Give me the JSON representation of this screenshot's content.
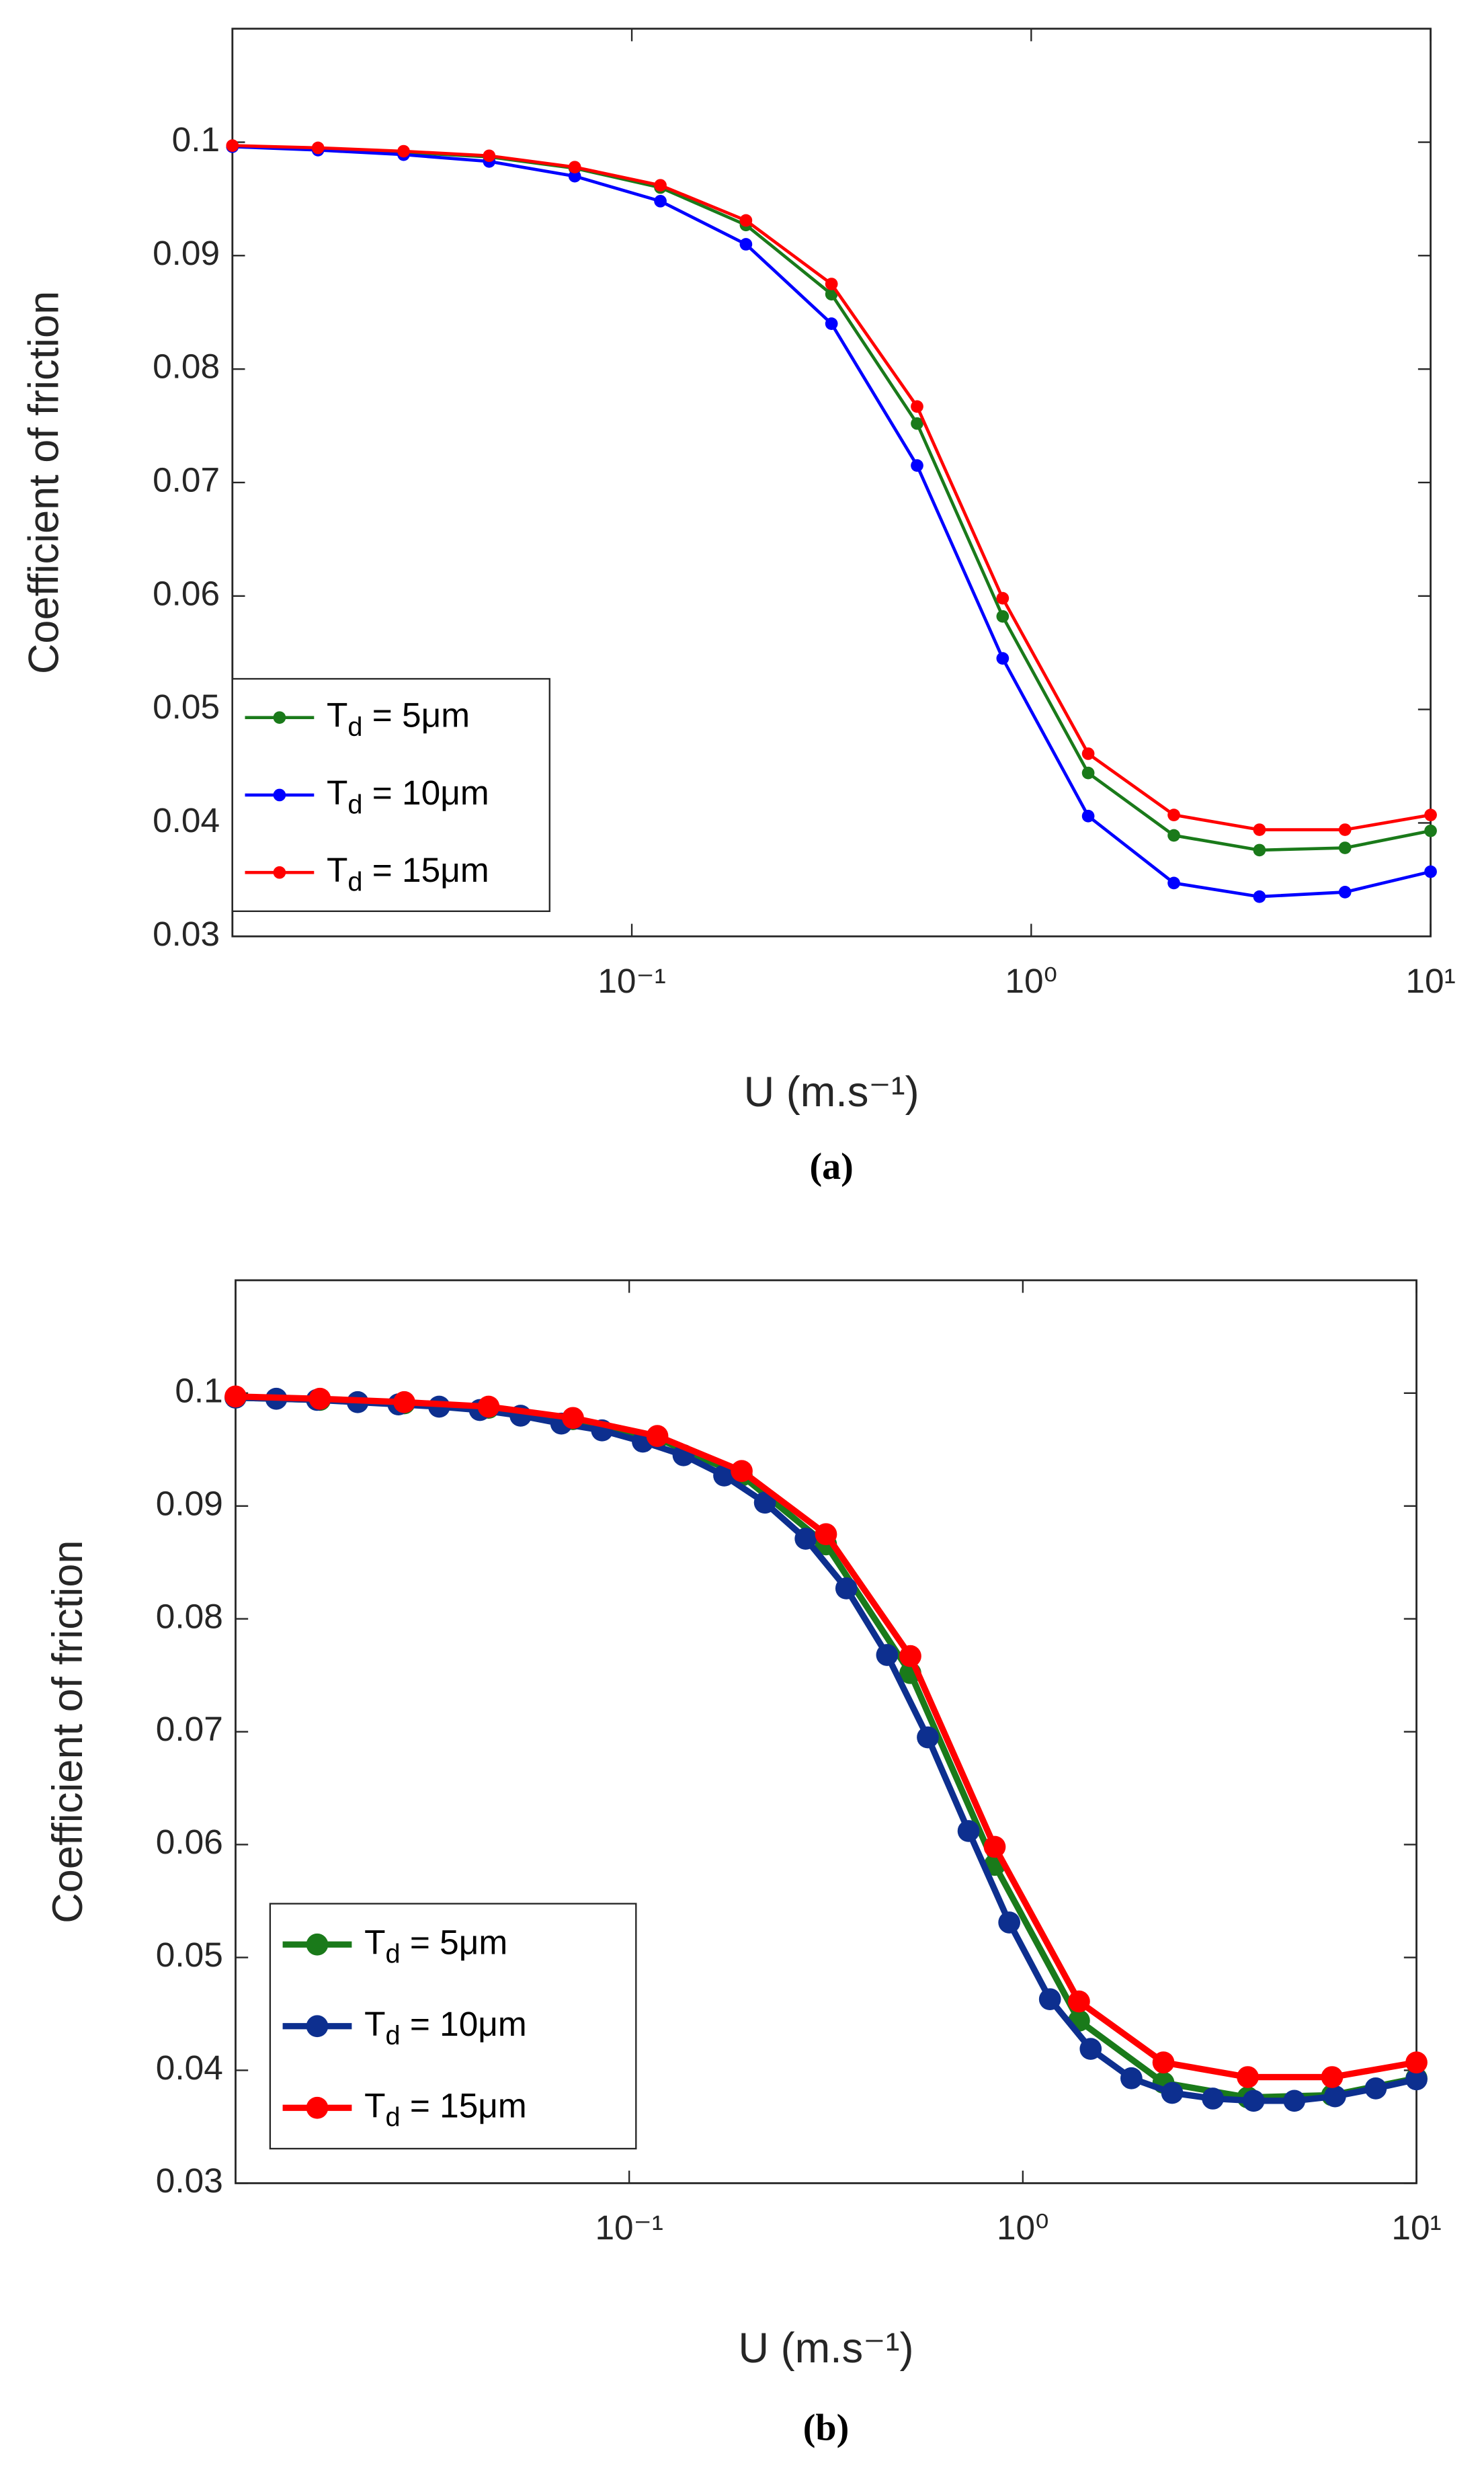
{
  "chart_data": [
    {
      "type": "line",
      "caption": "(a)",
      "xlabel": "U (m.s⁻¹)",
      "ylabel": "Coefficient of friction",
      "xscale": "log",
      "xlim": [
        0.01,
        10
      ],
      "ylim": [
        0.03,
        0.11
      ],
      "xticks": [
        {
          "value": 0.1,
          "label": "10⁻¹"
        },
        {
          "value": 1,
          "label": "10⁰"
        },
        {
          "value": 10,
          "label": "10¹"
        }
      ],
      "yticks": [
        0.03,
        0.04,
        0.05,
        0.06,
        0.07,
        0.08,
        0.09,
        0.1
      ],
      "legend": "lower left",
      "grid": false,
      "series": [
        {
          "name": "Td = 5μm",
          "color": "#1a7a1a",
          "x": [
            0.01,
            0.01638,
            0.02683,
            0.04394,
            0.07197,
            0.1179,
            0.1931,
            0.3162,
            0.5179,
            0.8483,
            1.389,
            2.276,
            3.728,
            6.105,
            10
          ],
          "values": [
            0.0996,
            0.0994,
            0.0991,
            0.0987,
            0.0977,
            0.096,
            0.0927,
            0.0866,
            0.0752,
            0.0582,
            0.0444,
            0.0389,
            0.0376,
            0.0378,
            0.0393
          ]
        },
        {
          "name": "Td = 10μm",
          "color": "#0000ff",
          "x": [
            0.01,
            0.01638,
            0.02683,
            0.04394,
            0.07197,
            0.1179,
            0.1931,
            0.3162,
            0.5179,
            0.8483,
            1.389,
            2.276,
            3.728,
            6.105,
            10
          ],
          "values": [
            0.0996,
            0.0993,
            0.0989,
            0.0983,
            0.097,
            0.0948,
            0.091,
            0.084,
            0.0715,
            0.0545,
            0.0406,
            0.0347,
            0.0335,
            0.0339,
            0.0357
          ]
        },
        {
          "name": "Td = 15μm",
          "color": "#ff0000",
          "x": [
            0.01,
            0.01638,
            0.02683,
            0.04394,
            0.07197,
            0.1179,
            0.1931,
            0.3162,
            0.5179,
            0.8483,
            1.389,
            2.276,
            3.728,
            6.105,
            10
          ],
          "values": [
            0.0997,
            0.0995,
            0.0992,
            0.0988,
            0.0978,
            0.0962,
            0.0931,
            0.0875,
            0.0767,
            0.0598,
            0.0461,
            0.0407,
            0.0394,
            0.0394,
            0.0407
          ]
        }
      ]
    },
    {
      "type": "line",
      "caption": "(b)",
      "xlabel": "U (m.s⁻¹)",
      "ylabel": "Coefficient of friction",
      "xscale": "log",
      "xlim": [
        0.01,
        10
      ],
      "ylim": [
        0.03,
        0.11
      ],
      "xticks": [
        {
          "value": 0.1,
          "label": "10⁻¹"
        },
        {
          "value": 1,
          "label": "10⁰"
        },
        {
          "value": 10,
          "label": "10¹"
        }
      ],
      "yticks": [
        0.03,
        0.04,
        0.05,
        0.06,
        0.07,
        0.08,
        0.09,
        0.1
      ],
      "legend": "lower left",
      "grid": false,
      "series": [
        {
          "name": "Td = 5μm",
          "color": "#1a7a1a",
          "x": [
            0.01,
            0.01638,
            0.02683,
            0.04394,
            0.07197,
            0.1179,
            0.1931,
            0.3162,
            0.5179,
            0.8483,
            1.389,
            2.276,
            3.728,
            6.105,
            10
          ],
          "values": [
            0.0996,
            0.0994,
            0.0991,
            0.0987,
            0.0977,
            0.096,
            0.0927,
            0.0866,
            0.0752,
            0.0582,
            0.0444,
            0.0389,
            0.0376,
            0.0378,
            0.0393
          ]
        },
        {
          "name": "Td = 10μm",
          "color": "#0d2f8f",
          "x": [
            0.01,
            0.01269,
            0.0161,
            0.02043,
            0.02593,
            0.0329,
            0.04175,
            0.05298,
            0.06723,
            0.08532,
            0.1083,
            0.1374,
            0.1743,
            0.2212,
            0.2807,
            0.3562,
            0.452,
            0.5736,
            0.7279,
            0.9237,
            1.172,
            1.487,
            1.887,
            2.395,
            3.039,
            3.857,
            4.894,
            6.211,
            7.88,
            10
          ],
          "values": [
            0.0996,
            0.0995,
            0.0994,
            0.0992,
            0.099,
            0.0988,
            0.0985,
            0.098,
            0.0973,
            0.0967,
            0.0957,
            0.0945,
            0.0927,
            0.0903,
            0.0871,
            0.0827,
            0.0768,
            0.0695,
            0.0612,
            0.0531,
            0.0463,
            0.0419,
            0.0393,
            0.038,
            0.0375,
            0.0373,
            0.0373,
            0.0377,
            0.0384,
            0.0392
          ]
        },
        {
          "name": "Td = 15μm",
          "color": "#ff0000",
          "x": [
            0.01,
            0.01638,
            0.02683,
            0.04394,
            0.07197,
            0.1179,
            0.1931,
            0.3162,
            0.5179,
            0.8483,
            1.389,
            2.276,
            3.728,
            6.105,
            10
          ],
          "values": [
            0.0997,
            0.0995,
            0.0992,
            0.0988,
            0.0978,
            0.0962,
            0.0931,
            0.0875,
            0.0767,
            0.0598,
            0.0461,
            0.0407,
            0.0394,
            0.0394,
            0.0407
          ]
        }
      ]
    }
  ]
}
